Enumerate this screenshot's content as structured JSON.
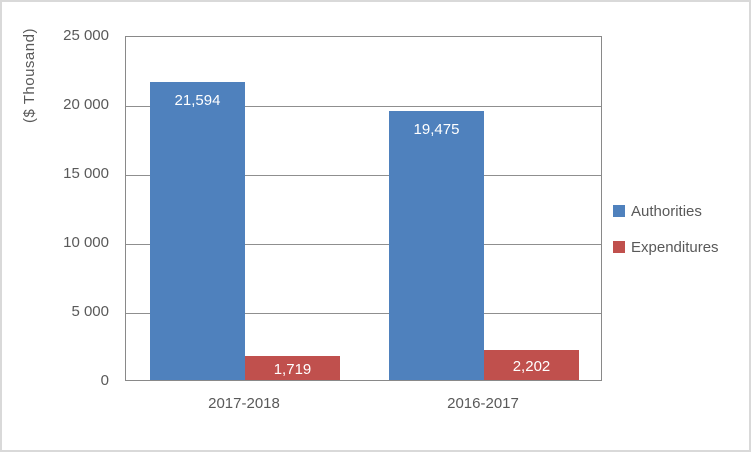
{
  "chart_data": {
    "type": "bar",
    "title": "",
    "ylabel": "($ Thousand)",
    "xlabel": "",
    "categories": [
      "2017-2018",
      "2016-2017"
    ],
    "series": [
      {
        "name": "Authorities",
        "color": "#4f81bd",
        "values": [
          21594,
          19475
        ],
        "value_labels": [
          "21,594",
          "19,475"
        ]
      },
      {
        "name": "Expenditures",
        "color": "#c0504d",
        "values": [
          1719,
          2202
        ],
        "value_labels": [
          "1,719",
          "2,202"
        ]
      }
    ],
    "ylim": [
      0,
      25000
    ],
    "ytick_values": [
      0,
      5000,
      10000,
      15000,
      20000,
      25000
    ],
    "ytick_labels": [
      "0",
      "5 000",
      "10 000",
      "15 000",
      "20 000",
      "25 000"
    ],
    "grid": true,
    "legend_position": "right",
    "bar_label_color": "#ffffff",
    "axis_text_color": "#595959",
    "gridline_color": "#8f8f8f",
    "plot_border_color": "#898989"
  }
}
